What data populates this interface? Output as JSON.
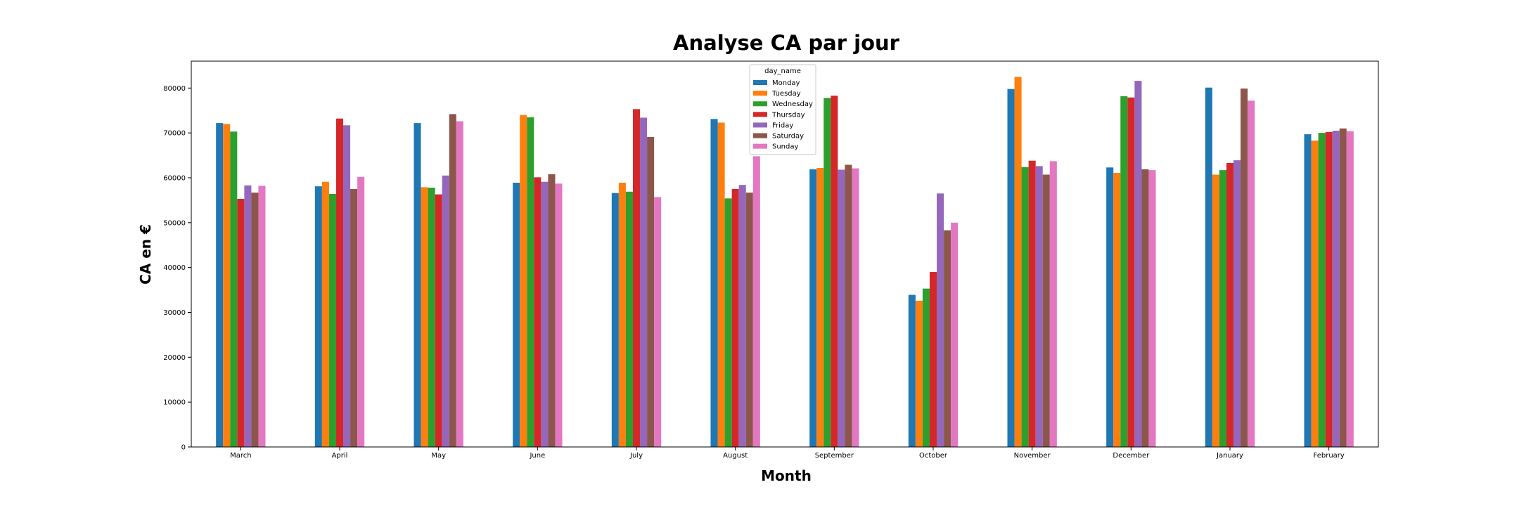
{
  "chart_data": {
    "type": "bar",
    "title": "Analyse CA par jour",
    "xlabel": "Month",
    "ylabel": "CA en €",
    "ylim": [
      0,
      86000
    ],
    "yticks": [
      0,
      10000,
      20000,
      30000,
      40000,
      50000,
      60000,
      70000,
      80000
    ],
    "grid": false,
    "legend_title": "day_name",
    "legend_position": "top-center",
    "categories": [
      "March",
      "April",
      "May",
      "June",
      "July",
      "August",
      "September",
      "October",
      "November",
      "December",
      "January",
      "February"
    ],
    "series": [
      {
        "name": "Monday",
        "color": "#1f77b4",
        "values": [
          72200,
          58100,
          72200,
          58900,
          56600,
          73100,
          61900,
          33900,
          79800,
          62300,
          80100,
          69700
        ]
      },
      {
        "name": "Tuesday",
        "color": "#ff7f0e",
        "values": [
          72000,
          59100,
          57900,
          74000,
          58900,
          72300,
          62200,
          32600,
          82500,
          61100,
          60700,
          68300
        ]
      },
      {
        "name": "Wednesday",
        "color": "#2ca02c",
        "values": [
          70300,
          56400,
          57800,
          73500,
          56900,
          55400,
          77800,
          35300,
          62400,
          78200,
          61700,
          70000
        ]
      },
      {
        "name": "Thursday",
        "color": "#d62728",
        "values": [
          55300,
          73200,
          56300,
          60100,
          75300,
          57500,
          78300,
          39000,
          63800,
          77900,
          63300,
          70200
        ]
      },
      {
        "name": "Friday",
        "color": "#9467bd",
        "values": [
          58300,
          71700,
          60500,
          59100,
          73400,
          58400,
          61800,
          56500,
          62600,
          81600,
          63900,
          70500
        ]
      },
      {
        "name": "Saturday",
        "color": "#8c564b",
        "values": [
          56700,
          57500,
          74200,
          60800,
          69100,
          56700,
          62900,
          48300,
          60700,
          61900,
          79900,
          71000
        ]
      },
      {
        "name": "Sunday",
        "color": "#e377c2",
        "values": [
          58200,
          60200,
          72600,
          58700,
          55700,
          64800,
          62100,
          50000,
          63700,
          61700,
          77200,
          70400
        ]
      }
    ]
  }
}
